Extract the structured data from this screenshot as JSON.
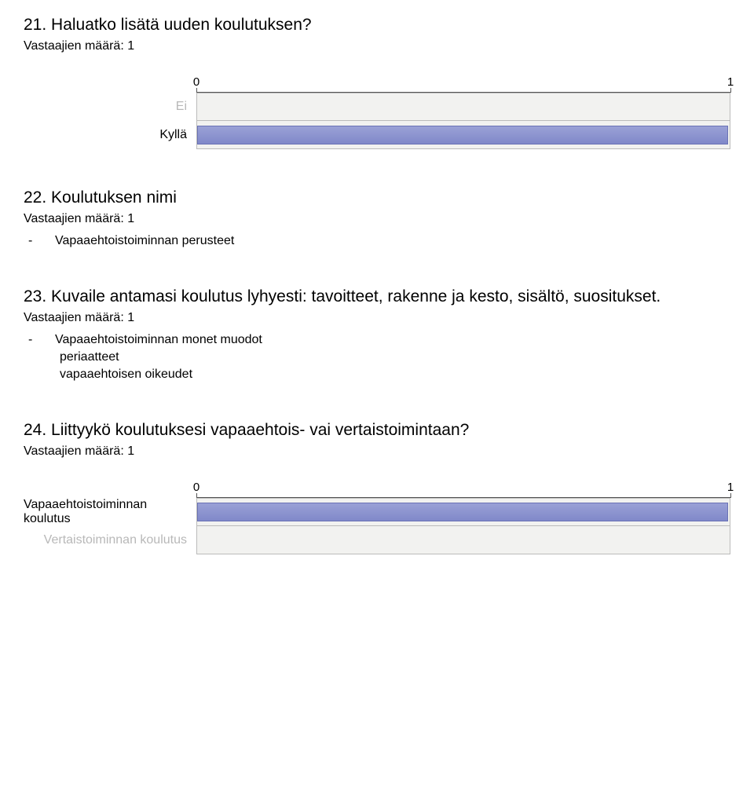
{
  "q21": {
    "title": "21. Haluatko lisätä uuden koulutuksen?",
    "respondents": "Vastaajien määrä: 1",
    "chart": {
      "type": "bar-horizontal",
      "xmin": 0,
      "xmax": 1,
      "xtick_labels": [
        "0",
        "1"
      ],
      "xtick_positions": [
        0,
        1
      ],
      "bg_color": "#f2f2f0",
      "bar_color_top": "#9aa1d6",
      "bar_color_bottom": "#8088c9",
      "bar_border": "#6b73b5",
      "categories": [
        {
          "label": "Ei",
          "value": 0,
          "label_color": "#b8b8b8"
        },
        {
          "label": "Kyllä",
          "value": 1,
          "label_color": "#000000"
        }
      ]
    }
  },
  "q22": {
    "title": "22. Koulutuksen nimi",
    "respondents": "Vastaajien määrä: 1",
    "items": [
      "Vapaaehtoistoiminnan perusteet"
    ]
  },
  "q23": {
    "title": "23. Kuvaile antamasi koulutus lyhyesti: tavoitteet, rakenne ja kesto, sisältö, suositukset.",
    "respondents": "Vastaajien määrä: 1",
    "items": [
      "Vapaaehtoistoiminnan monet muodot",
      "periaatteet",
      "vapaaehtoisen oikeudet"
    ]
  },
  "q24": {
    "title": "24. Liittyykö koulutuksesi vapaaehtois- vai vertaistoimintaan?",
    "respondents": "Vastaajien määrä: 1",
    "chart": {
      "type": "bar-horizontal",
      "xmin": 0,
      "xmax": 1,
      "xtick_labels": [
        "0",
        "1"
      ],
      "xtick_positions": [
        0,
        1
      ],
      "bg_color": "#f2f2f0",
      "bar_color_top": "#9aa1d6",
      "bar_color_bottom": "#8088c9",
      "bar_border": "#6b73b5",
      "categories": [
        {
          "label": "Vapaaehtoistoiminnan koulutus",
          "value": 1,
          "label_color": "#000000"
        },
        {
          "label": "Vertaistoiminnan koulutus",
          "value": 0,
          "label_color": "#b8b8b8"
        }
      ]
    }
  }
}
